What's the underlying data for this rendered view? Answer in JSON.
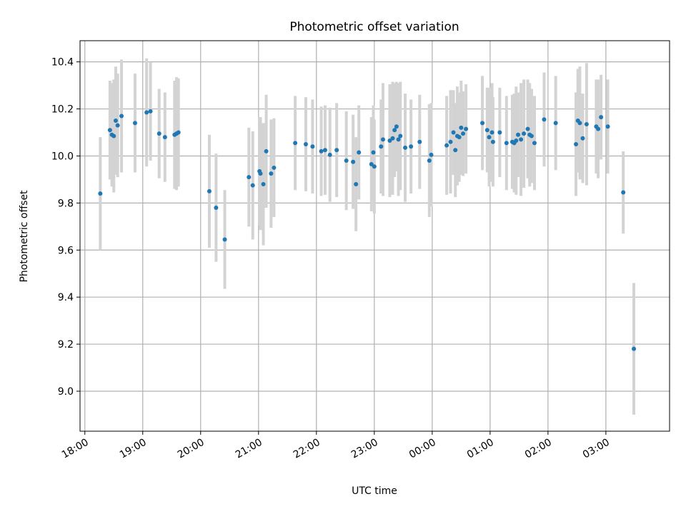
{
  "chart_data": {
    "type": "scatter",
    "title": "Photometric offset variation",
    "xlabel": "UTC time",
    "ylabel": "Photometric offset",
    "xlim": [
      "17:55",
      "28:06"
    ],
    "ylim": [
      8.83,
      10.49
    ],
    "grid": true,
    "legend": "none",
    "x_ticks": [
      {
        "t": "18:00",
        "label": "18:00"
      },
      {
        "t": "19:00",
        "label": "19:00"
      },
      {
        "t": "20:00",
        "label": "20:00"
      },
      {
        "t": "21:00",
        "label": "21:00"
      },
      {
        "t": "22:00",
        "label": "22:00"
      },
      {
        "t": "23:00",
        "label": "23:00"
      },
      {
        "t": "24:00",
        "label": "00:00"
      },
      {
        "t": "25:00",
        "label": "01:00"
      },
      {
        "t": "26:00",
        "label": "02:00"
      },
      {
        "t": "27:00",
        "label": "03:00"
      }
    ],
    "y_ticks": [
      9.0,
      9.2,
      9.4,
      9.6,
      9.8,
      10.0,
      10.2,
      10.4
    ],
    "colors": {
      "points": "#1f77b4",
      "errorbars": "#d3d3d3",
      "grid": "#b0b0b0"
    },
    "series": [
      {
        "x": [
          "18:16",
          "18:26",
          "18:28",
          "18:30",
          "18:32",
          "18:34",
          "18:38",
          "18:52",
          "19:04",
          "19:08",
          "19:17",
          "19:23",
          "19:33",
          "19:35",
          "19:37",
          "20:09",
          "20:16",
          "20:25",
          "20:50",
          "20:54",
          "21:01",
          "21:02",
          "21:05",
          "21:08",
          "21:13",
          "21:16",
          "21:38",
          "21:49",
          "21:56",
          "22:05",
          "22:09",
          "22:14",
          "22:21",
          "22:31",
          "22:38",
          "22:41",
          "22:44",
          "22:57",
          "22:59",
          "23:00",
          "23:07",
          "23:09",
          "23:16",
          "23:19",
          "23:21",
          "23:23",
          "23:25",
          "23:27",
          "23:32",
          "23:38",
          "23:47",
          "23:57",
          "23:59",
          "24:15",
          "24:19",
          "24:22",
          "24:24",
          "24:26",
          "24:28",
          "24:30",
          "24:32",
          "24:35",
          "24:52",
          "24:57",
          "24:59",
          "25:02",
          "25:03",
          "25:10",
          "25:17",
          "25:23",
          "25:25",
          "25:27",
          "25:29",
          "25:32",
          "25:35",
          "25:39",
          "25:41",
          "25:43",
          "25:46",
          "25:56",
          "26:08",
          "26:29",
          "26:31",
          "26:33",
          "26:36",
          "26:40",
          "26:50",
          "26:52",
          "26:55",
          "27:02"
        ],
        "y": [
          9.84,
          10.11,
          10.09,
          10.085,
          10.15,
          10.13,
          10.17,
          10.14,
          10.185,
          10.19,
          10.095,
          10.08,
          10.09,
          10.095,
          10.1,
          9.85,
          9.78,
          9.645,
          9.91,
          9.875,
          9.935,
          9.925,
          9.88,
          10.02,
          9.925,
          9.95,
          10.055,
          10.05,
          10.04,
          10.02,
          10.025,
          10.005,
          10.025,
          9.98,
          9.975,
          9.88,
          10.015,
          9.965,
          10.015,
          9.955,
          10.04,
          10.07,
          10.065,
          10.075,
          10.11,
          10.125,
          10.07,
          10.085,
          10.035,
          10.04,
          10.06,
          9.98,
          10.005,
          10.045,
          10.06,
          10.1,
          10.025,
          10.085,
          10.08,
          10.12,
          10.095,
          10.115,
          10.14,
          10.11,
          10.08,
          10.1,
          10.06,
          10.1,
          10.055,
          10.06,
          10.055,
          10.065,
          10.09,
          10.07,
          10.095,
          10.115,
          10.09,
          10.085,
          10.055,
          10.155,
          10.14,
          10.05,
          10.15,
          10.14,
          10.075,
          10.135,
          10.125,
          10.115,
          10.165,
          10.125
        ],
        "yerr": [
          0.24,
          0.21,
          0.22,
          0.24,
          0.23,
          0.22,
          0.24,
          0.21,
          0.23,
          0.21,
          0.19,
          0.19,
          0.23,
          0.24,
          0.23,
          0.24,
          0.23,
          0.21,
          0.21,
          0.23,
          0.23,
          0.24,
          0.26,
          0.24,
          0.23,
          0.21,
          0.2,
          0.2,
          0.2,
          0.19,
          0.19,
          0.2,
          0.2,
          0.21,
          0.2,
          0.2,
          0.2,
          0.2,
          0.2,
          0.2,
          0.2,
          0.24,
          0.24,
          0.24,
          0.2,
          0.19,
          0.24,
          0.23,
          0.23,
          0.2,
          0.2,
          0.24,
          0.22,
          0.21,
          0.22,
          0.18,
          0.2,
          0.21,
          0.19,
          0.2,
          0.18,
          0.19,
          0.2,
          0.18,
          0.21,
          0.21,
          0.19,
          0.19,
          0.2,
          0.2,
          0.21,
          0.23,
          0.18,
          0.24,
          0.23,
          0.21,
          0.22,
          0.2,
          0.2,
          0.2,
          0.2,
          0.22,
          0.22,
          0.24,
          0.19,
          0.26,
          0.2,
          0.21,
          0.18,
          0.2
        ]
      },
      {
        "x": [
          "27:18",
          "27:29"
        ],
        "y": [
          9.845,
          9.18
        ],
        "yerr": [
          0.175,
          0.28
        ]
      }
    ]
  }
}
